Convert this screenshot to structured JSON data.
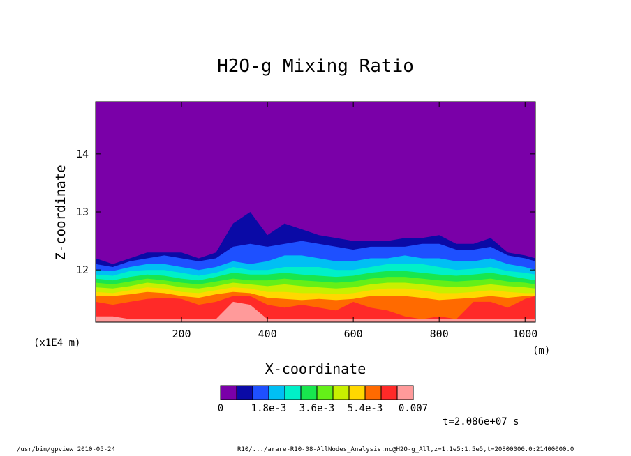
{
  "footer": {
    "program": "/usr/bin/gpview  2010-05-24",
    "source": "R10/.../arare-R10-08-AllNodes_Analysis.nc@H2O-g_All,z=1.1e5:1.5e5,t=20800000.0:21400000.0"
  },
  "chart_data": {
    "type": "heatmap",
    "title": "H2O-g Mixing Ratio",
    "xlabel": "X-coordinate",
    "x_units": "(m)",
    "ylabel": "Z-coordinate",
    "y_scale_note": "(x1E4 m)",
    "xlim": [
      0,
      1024
    ],
    "ylim": [
      11.1,
      14.9
    ],
    "x_ticks": [
      200,
      400,
      600,
      800,
      1000
    ],
    "y_ticks": [
      12,
      13,
      14
    ],
    "time_annotation": "t=2.086e+07 s",
    "colorbar": {
      "levels": [
        0,
        0.0006,
        0.0012,
        0.0018,
        0.0024,
        0.003,
        0.0036,
        0.0042,
        0.0048,
        0.0054,
        0.006,
        0.0066,
        0.007
      ],
      "tick_labels": [
        "0",
        "1.8e-3",
        "3.6e-3",
        "5.4e-3",
        "0.007"
      ],
      "tick_level_index": [
        0,
        3,
        6,
        9,
        12
      ],
      "colors": [
        "#7a00a8",
        "#0a0aa6",
        "#1e50ff",
        "#00bff4",
        "#00f0c8",
        "#18e64e",
        "#64f018",
        "#c8f000",
        "#ffd800",
        "#ff6a00",
        "#ff2a28",
        "#ff9a9a"
      ]
    },
    "contour_boundaries_z": {
      "x": [
        0,
        40,
        80,
        120,
        160,
        200,
        240,
        280,
        320,
        360,
        400,
        440,
        480,
        520,
        560,
        600,
        640,
        680,
        720,
        760,
        800,
        840,
        880,
        920,
        960,
        1000,
        1024
      ],
      "level_top": [
        [
          12.2,
          12.1,
          12.2,
          12.3,
          12.3,
          12.3,
          12.2,
          12.3,
          12.8,
          13.0,
          12.6,
          12.8,
          12.7,
          12.6,
          12.55,
          12.5,
          12.5,
          12.5,
          12.55,
          12.55,
          12.6,
          12.45,
          12.45,
          12.55,
          12.3,
          12.25,
          12.2
        ],
        [
          12.1,
          12.05,
          12.15,
          12.2,
          12.25,
          12.2,
          12.15,
          12.2,
          12.4,
          12.45,
          12.4,
          12.45,
          12.5,
          12.45,
          12.4,
          12.35,
          12.4,
          12.4,
          12.4,
          12.45,
          12.45,
          12.35,
          12.35,
          12.4,
          12.25,
          12.2,
          12.15
        ],
        [
          12.0,
          11.98,
          12.05,
          12.1,
          12.1,
          12.05,
          12.0,
          12.05,
          12.15,
          12.1,
          12.15,
          12.25,
          12.25,
          12.2,
          12.15,
          12.15,
          12.2,
          12.2,
          12.25,
          12.2,
          12.2,
          12.15,
          12.15,
          12.2,
          12.1,
          12.05,
          12.0
        ],
        [
          11.92,
          11.9,
          11.98,
          12.0,
          12.0,
          11.95,
          11.9,
          11.95,
          12.05,
          12.0,
          12.0,
          12.05,
          12.05,
          12.05,
          12.0,
          12.0,
          12.05,
          12.1,
          12.1,
          12.1,
          12.05,
          12.0,
          12.02,
          12.05,
          11.98,
          11.95,
          11.92
        ],
        [
          11.85,
          11.82,
          11.88,
          11.92,
          11.9,
          11.85,
          11.82,
          11.88,
          11.95,
          11.92,
          11.92,
          11.95,
          11.92,
          11.9,
          11.88,
          11.9,
          11.95,
          11.98,
          11.98,
          11.95,
          11.92,
          11.9,
          11.92,
          11.95,
          11.9,
          11.85,
          11.82
        ],
        [
          11.78,
          11.75,
          11.8,
          11.85,
          11.82,
          11.78,
          11.75,
          11.8,
          11.85,
          11.82,
          11.82,
          11.85,
          11.82,
          11.8,
          11.78,
          11.8,
          11.85,
          11.88,
          11.88,
          11.85,
          11.82,
          11.8,
          11.82,
          11.85,
          11.8,
          11.78,
          11.75
        ],
        [
          11.7,
          11.68,
          11.72,
          11.78,
          11.75,
          11.7,
          11.68,
          11.72,
          11.78,
          11.75,
          11.72,
          11.75,
          11.72,
          11.7,
          11.68,
          11.7,
          11.75,
          11.78,
          11.78,
          11.75,
          11.72,
          11.7,
          11.72,
          11.75,
          11.72,
          11.7,
          11.68
        ],
        [
          11.62,
          11.6,
          11.65,
          11.7,
          11.68,
          11.62,
          11.6,
          11.65,
          11.7,
          11.68,
          11.62,
          11.62,
          11.6,
          11.6,
          11.58,
          11.6,
          11.65,
          11.68,
          11.68,
          11.65,
          11.6,
          11.6,
          11.62,
          11.65,
          11.62,
          11.6,
          11.6
        ],
        [
          11.55,
          11.55,
          11.58,
          11.62,
          11.6,
          11.55,
          11.52,
          11.58,
          11.62,
          11.6,
          11.52,
          11.5,
          11.48,
          11.5,
          11.48,
          11.5,
          11.55,
          11.55,
          11.55,
          11.52,
          11.48,
          11.5,
          11.52,
          11.55,
          11.52,
          11.55,
          11.55
        ],
        [
          11.45,
          11.4,
          11.45,
          11.5,
          11.52,
          11.5,
          11.4,
          11.45,
          11.55,
          11.55,
          11.4,
          11.35,
          11.4,
          11.35,
          11.3,
          11.45,
          11.35,
          11.3,
          11.2,
          11.15,
          11.2,
          11.15,
          11.45,
          11.45,
          11.35,
          11.5,
          11.55
        ],
        [
          11.2,
          11.2,
          11.15,
          11.15,
          11.15,
          11.15,
          11.15,
          11.15,
          11.45,
          11.4,
          11.15,
          11.15,
          11.15,
          11.15,
          11.15,
          11.15,
          11.15,
          11.15,
          11.15,
          11.15,
          11.15,
          11.15,
          11.15,
          11.15,
          11.15,
          11.15,
          11.15
        ]
      ]
    }
  }
}
